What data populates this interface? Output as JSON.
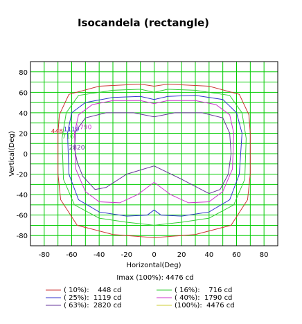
{
  "chart_data": {
    "type": "line",
    "title": "Isocandela (rectangle)",
    "xlabel": "Horizontal(Deg)",
    "ylabel": "Vertical(Deg)",
    "xlim": [
      -90,
      90
    ],
    "ylim": [
      -90,
      90
    ],
    "grid": true,
    "grid_color": "#00cc00",
    "x_ticks": [
      -80,
      -60,
      -40,
      -20,
      0,
      20,
      40,
      60,
      80
    ],
    "y_ticks": [
      80,
      60,
      40,
      20,
      0,
      -20,
      -40,
      -60,
      -80
    ],
    "imax_text": "Imax (100%): 4476 cd",
    "legend_position": "bottom",
    "series": [
      {
        "name": "( 10%):    448 cd",
        "label": "448",
        "color": "#cc3333",
        "points": [
          [
            -70,
            20
          ],
          [
            -69,
            38
          ],
          [
            -62,
            58
          ],
          [
            -40,
            66
          ],
          [
            -10,
            68
          ],
          [
            0,
            66
          ],
          [
            10,
            68
          ],
          [
            40,
            66
          ],
          [
            62,
            58
          ],
          [
            69,
            38
          ],
          [
            70,
            20
          ],
          [
            70,
            -20
          ],
          [
            68,
            -45
          ],
          [
            56,
            -70
          ],
          [
            30,
            -79
          ],
          [
            0,
            -82
          ],
          [
            -30,
            -79
          ],
          [
            -56,
            -70
          ],
          [
            -68,
            -45
          ],
          [
            -70,
            -20
          ],
          [
            -70,
            20
          ]
        ]
      },
      {
        "name": "( 16%):    716 cd",
        "label": "716",
        "color": "#33cc33",
        "points": [
          [
            -67,
            15
          ],
          [
            -64,
            40
          ],
          [
            -55,
            57
          ],
          [
            -30,
            62
          ],
          [
            -10,
            63
          ],
          [
            0,
            60
          ],
          [
            10,
            63
          ],
          [
            30,
            62
          ],
          [
            55,
            57
          ],
          [
            64,
            40
          ],
          [
            67,
            15
          ],
          [
            66,
            -25
          ],
          [
            58,
            -50
          ],
          [
            40,
            -63
          ],
          [
            20,
            -67
          ],
          [
            0,
            -70
          ],
          [
            -20,
            -67
          ],
          [
            -40,
            -63
          ],
          [
            -58,
            -50
          ],
          [
            -66,
            -25
          ],
          [
            -67,
            15
          ]
        ]
      },
      {
        "name": "( 25%):  1119 cd",
        "label": "1119",
        "color": "#3333cc",
        "points": [
          [
            -63,
            20
          ],
          [
            -60,
            40
          ],
          [
            -50,
            50
          ],
          [
            -30,
            55
          ],
          [
            -10,
            56
          ],
          [
            0,
            53
          ],
          [
            10,
            56
          ],
          [
            30,
            57
          ],
          [
            50,
            53
          ],
          [
            60,
            40
          ],
          [
            64,
            20
          ],
          [
            62,
            -20
          ],
          [
            55,
            -45
          ],
          [
            40,
            -57
          ],
          [
            20,
            -61
          ],
          [
            5,
            -60
          ],
          [
            0,
            -55
          ],
          [
            -5,
            -60
          ],
          [
            -20,
            -61
          ],
          [
            -40,
            -57
          ],
          [
            -55,
            -45
          ],
          [
            -62,
            -20
          ],
          [
            -63,
            20
          ]
        ]
      },
      {
        "name": "( 40%):  1790 cd",
        "label": "1790",
        "color": "#cc33cc",
        "points": [
          [
            -58,
            20
          ],
          [
            -55,
            38
          ],
          [
            -45,
            48
          ],
          [
            -30,
            52
          ],
          [
            -10,
            52
          ],
          [
            0,
            49
          ],
          [
            10,
            52
          ],
          [
            30,
            52
          ],
          [
            45,
            48
          ],
          [
            55,
            38
          ],
          [
            58,
            20
          ],
          [
            57,
            -15
          ],
          [
            50,
            -37
          ],
          [
            40,
            -47
          ],
          [
            25,
            -48
          ],
          [
            12,
            -40
          ],
          [
            0,
            -28
          ],
          [
            -12,
            -40
          ],
          [
            -25,
            -48
          ],
          [
            -40,
            -47
          ],
          [
            -50,
            -37
          ],
          [
            -57,
            -15
          ],
          [
            -58,
            20
          ]
        ]
      },
      {
        "name": "( 63%):  2820 cd",
        "label": "2820",
        "color": "#663399",
        "points": [
          [
            -58,
            5
          ],
          [
            -57,
            22
          ],
          [
            -50,
            35
          ],
          [
            -35,
            40
          ],
          [
            -15,
            40
          ],
          [
            0,
            36
          ],
          [
            15,
            40
          ],
          [
            35,
            40
          ],
          [
            50,
            35
          ],
          [
            55,
            20
          ],
          [
            56,
            0
          ],
          [
            54,
            -20
          ],
          [
            48,
            -35
          ],
          [
            40,
            -39
          ],
          [
            20,
            -25
          ],
          [
            0,
            -12
          ],
          [
            -20,
            -20
          ],
          [
            -35,
            -33
          ],
          [
            -43,
            -35
          ],
          [
            -52,
            -22
          ],
          [
            -56,
            -8
          ],
          [
            -58,
            5
          ]
        ]
      },
      {
        "name": "(100%):  4476 cd",
        "label": "",
        "color": "#cccc33",
        "points": []
      }
    ],
    "annotations": [
      {
        "text": "448",
        "x": -75,
        "y": 20,
        "color": "#cc3333"
      },
      {
        "text": "716",
        "x": -67,
        "y": 15,
        "color": "#33cc33"
      },
      {
        "text": "1119",
        "x": -66,
        "y": 22,
        "color": "#3333cc"
      },
      {
        "text": "1790",
        "x": -57,
        "y": 24,
        "color": "#cc33cc"
      },
      {
        "text": "2820",
        "x": -62,
        "y": 4,
        "color": "#663399"
      }
    ]
  }
}
